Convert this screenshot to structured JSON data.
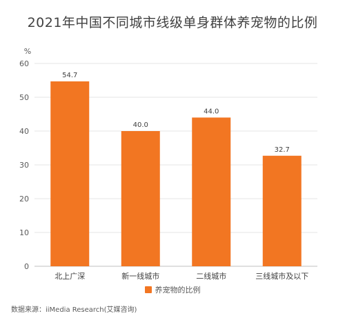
{
  "chart_data": {
    "type": "bar",
    "title": "2021年中国不同城市线级单身群体养宠物的比例",
    "ylabel": "%",
    "xlabel": "",
    "categories": [
      "北上广深",
      "新一线城市",
      "二线城市",
      "三线城市及以下"
    ],
    "series": [
      {
        "name": "养宠物的比例",
        "values": [
          54.7,
          40.0,
          44.0,
          32.7
        ]
      }
    ],
    "data_labels": [
      "54.7",
      "40.0",
      "44.0",
      "32.7"
    ],
    "ylim": [
      0,
      60
    ],
    "yticks": [
      0,
      10,
      20,
      30,
      40,
      50,
      60
    ],
    "grid": true,
    "legend_position": "bottom",
    "bar_color": "#F27622"
  },
  "source_text": "数据来源：iiMedia Research(艾媒咨询)"
}
